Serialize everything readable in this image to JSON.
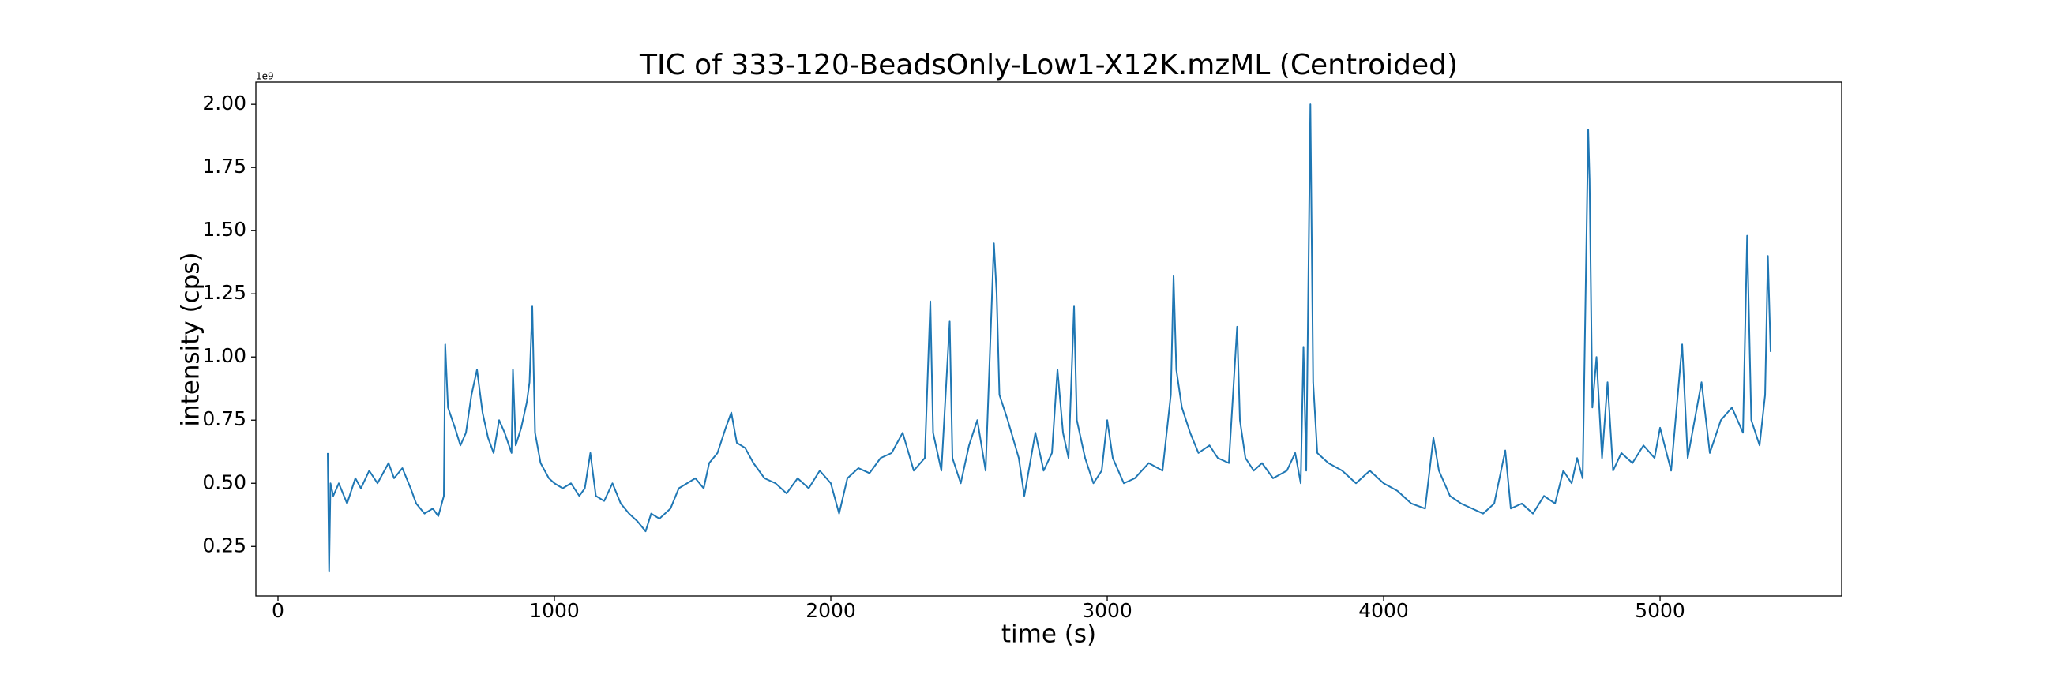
{
  "chart_data": {
    "type": "line",
    "title": "TIC of 333-120-BeadsOnly-Low1-X12K.mzML (Centroided)",
    "x_label": "time (s)",
    "y_label": "intensity (cps)",
    "y_offset_label": "1e9",
    "color": "#1f77b4",
    "x": [
      180,
      185,
      190,
      200,
      220,
      250,
      280,
      300,
      330,
      360,
      400,
      420,
      450,
      480,
      500,
      530,
      560,
      580,
      600,
      605,
      615,
      640,
      660,
      680,
      700,
      720,
      740,
      760,
      780,
      800,
      820,
      845,
      850,
      860,
      880,
      900,
      910,
      920,
      930,
      950,
      980,
      1000,
      1030,
      1060,
      1090,
      1110,
      1130,
      1150,
      1180,
      1210,
      1240,
      1270,
      1300,
      1330,
      1350,
      1380,
      1420,
      1450,
      1480,
      1510,
      1540,
      1560,
      1590,
      1620,
      1640,
      1660,
      1690,
      1720,
      1760,
      1800,
      1840,
      1880,
      1920,
      1960,
      2000,
      2030,
      2060,
      2100,
      2140,
      2180,
      2220,
      2260,
      2300,
      2340,
      2360,
      2370,
      2400,
      2430,
      2440,
      2470,
      2500,
      2530,
      2560,
      2590,
      2600,
      2610,
      2640,
      2680,
      2700,
      2740,
      2770,
      2800,
      2820,
      2840,
      2860,
      2880,
      2890,
      2920,
      2950,
      2980,
      3000,
      3020,
      3060,
      3100,
      3150,
      3200,
      3230,
      3240,
      3250,
      3270,
      3300,
      3330,
      3370,
      3400,
      3440,
      3470,
      3480,
      3500,
      3530,
      3560,
      3600,
      3650,
      3680,
      3700,
      3710,
      3720,
      3735,
      3745,
      3760,
      3800,
      3850,
      3900,
      3950,
      4000,
      4050,
      4100,
      4150,
      4180,
      4200,
      4240,
      4280,
      4320,
      4360,
      4400,
      4440,
      4460,
      4500,
      4540,
      4580,
      4620,
      4650,
      4680,
      4700,
      4720,
      4740,
      4745,
      4755,
      4770,
      4790,
      4810,
      4830,
      4860,
      4900,
      4940,
      4980,
      5000,
      5040,
      5080,
      5100,
      5150,
      5180,
      5220,
      5260,
      5300,
      5315,
      5330,
      5360,
      5380,
      5390,
      5400
    ],
    "values": [
      0.62,
      0.15,
      0.5,
      0.45,
      0.5,
      0.42,
      0.52,
      0.48,
      0.55,
      0.5,
      0.58,
      0.52,
      0.56,
      0.48,
      0.42,
      0.38,
      0.4,
      0.37,
      0.45,
      1.05,
      0.8,
      0.72,
      0.65,
      0.7,
      0.85,
      0.95,
      0.78,
      0.68,
      0.62,
      0.75,
      0.7,
      0.62,
      0.95,
      0.65,
      0.72,
      0.82,
      0.9,
      1.2,
      0.7,
      0.58,
      0.52,
      0.5,
      0.48,
      0.5,
      0.45,
      0.48,
      0.62,
      0.45,
      0.43,
      0.5,
      0.42,
      0.38,
      0.35,
      0.31,
      0.38,
      0.36,
      0.4,
      0.48,
      0.5,
      0.52,
      0.48,
      0.58,
      0.62,
      0.72,
      0.78,
      0.66,
      0.64,
      0.58,
      0.52,
      0.5,
      0.46,
      0.52,
      0.48,
      0.55,
      0.5,
      0.38,
      0.52,
      0.56,
      0.54,
      0.6,
      0.62,
      0.7,
      0.55,
      0.6,
      1.22,
      0.7,
      0.55,
      1.14,
      0.6,
      0.5,
      0.65,
      0.75,
      0.55,
      1.45,
      1.25,
      0.85,
      0.75,
      0.6,
      0.45,
      0.7,
      0.55,
      0.62,
      0.95,
      0.7,
      0.6,
      1.2,
      0.75,
      0.6,
      0.5,
      0.55,
      0.75,
      0.6,
      0.5,
      0.52,
      0.58,
      0.55,
      0.85,
      1.32,
      0.95,
      0.8,
      0.7,
      0.62,
      0.65,
      0.6,
      0.58,
      1.12,
      0.75,
      0.6,
      0.55,
      0.58,
      0.52,
      0.55,
      0.62,
      0.5,
      1.04,
      0.55,
      2.0,
      0.9,
      0.62,
      0.58,
      0.55,
      0.5,
      0.55,
      0.5,
      0.47,
      0.42,
      0.4,
      0.68,
      0.55,
      0.45,
      0.42,
      0.4,
      0.38,
      0.42,
      0.63,
      0.4,
      0.42,
      0.38,
      0.45,
      0.42,
      0.55,
      0.5,
      0.6,
      0.52,
      1.9,
      1.7,
      0.8,
      1.0,
      0.6,
      0.9,
      0.55,
      0.62,
      0.58,
      0.65,
      0.6,
      0.72,
      0.55,
      1.05,
      0.6,
      0.9,
      0.62,
      0.75,
      0.8,
      0.7,
      1.48,
      0.75,
      0.65,
      0.85,
      1.4,
      1.02
    ],
    "xlim": [
      -80,
      5657
    ],
    "ylim": [
      0.054,
      2.088
    ],
    "xticks": [
      0,
      1000,
      2000,
      3000,
      4000,
      5000
    ],
    "yticks": [
      0.25,
      {
        "value": 0.5,
        "label": "0.50"
      },
      0.75,
      {
        "value": 1,
        "label": "1.00"
      },
      1.25,
      {
        "value": 1.5,
        "label": "1.50"
      },
      1.75,
      {
        "value": 2,
        "label": "2.00"
      }
    ]
  }
}
